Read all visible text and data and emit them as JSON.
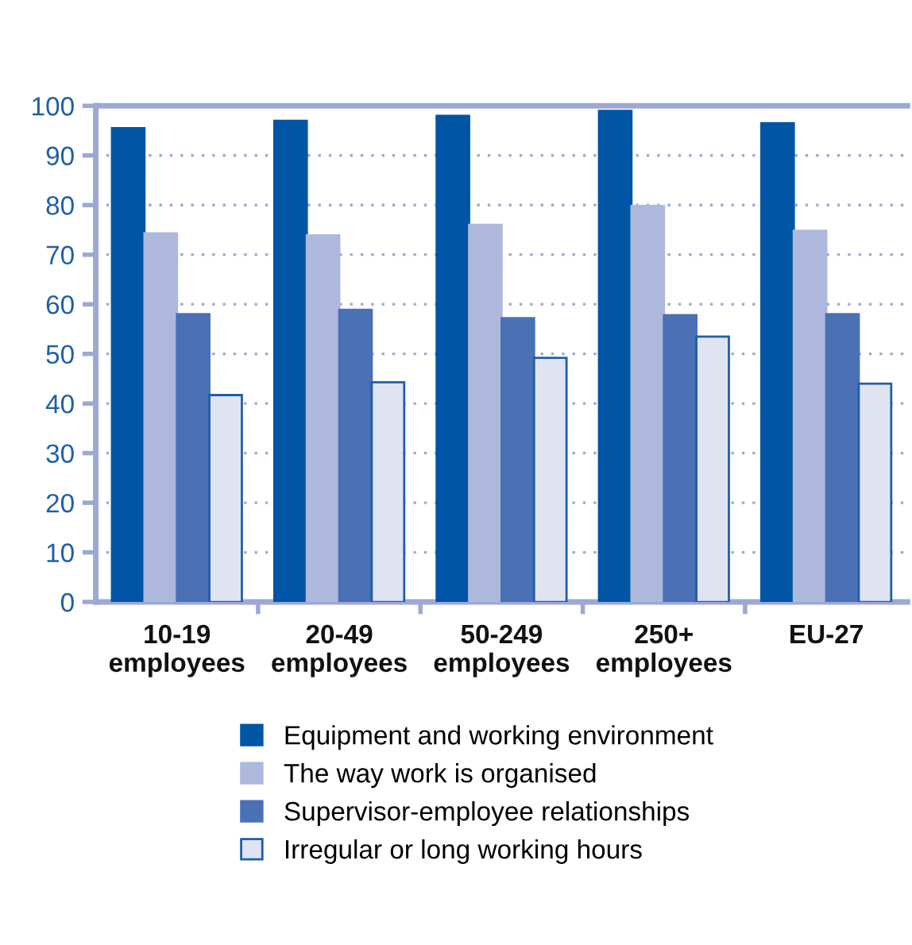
{
  "chart_data": {
    "type": "bar",
    "categories": [
      "10-19\nemployees",
      "20-49\nemployees",
      "50-249\nemployees",
      "250+\nemployees",
      "EU-27"
    ],
    "series": [
      {
        "name": "Equipment and working environment",
        "color": "#0055a5",
        "values": [
          95.5,
          97,
          98,
          99,
          96.5
        ]
      },
      {
        "name": "The way work is organised",
        "color": "#adb8dc",
        "values": [
          74.3,
          73.9,
          76,
          79.8,
          74.8
        ]
      },
      {
        "name": "Supervisor-employee relationships",
        "color": "#4a70b5",
        "values": [
          58,
          58.9,
          57.2,
          57.8,
          58
        ]
      },
      {
        "name": "Irregular or long working hours",
        "color": "#e0e4f2",
        "values": [
          41.7,
          44.3,
          49.2,
          53.5,
          44
        ]
      }
    ],
    "ylim": [
      0,
      100
    ],
    "yticks": [
      0,
      10,
      20,
      30,
      40,
      50,
      60,
      70,
      80,
      90,
      100
    ],
    "grid": "y",
    "legend": "bottom"
  }
}
